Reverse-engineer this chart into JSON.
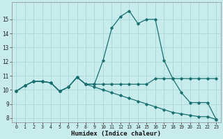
{
  "xlabel": "Humidex (Indice chaleur)",
  "background_color": "#c8ecec",
  "grid_color": "#a8d8d8",
  "line_color": "#1a7070",
  "xlim_min": -0.5,
  "xlim_max": 23.5,
  "ylim_min": 7.7,
  "ylim_max": 16.2,
  "yticks": [
    8,
    9,
    10,
    11,
    12,
    13,
    14,
    15
  ],
  "xticks": [
    0,
    1,
    2,
    3,
    4,
    5,
    6,
    7,
    8,
    9,
    10,
    11,
    12,
    13,
    14,
    15,
    16,
    17,
    18,
    19,
    20,
    21,
    22,
    23
  ],
  "series": [
    {
      "x": [
        0,
        1,
        2,
        3,
        4,
        5,
        6,
        7,
        8,
        9,
        10,
        11,
        12,
        13,
        14,
        15,
        16,
        17,
        18,
        19,
        20,
        21,
        22,
        23
      ],
      "y": [
        9.9,
        10.3,
        10.6,
        10.6,
        10.5,
        9.9,
        10.2,
        10.9,
        10.4,
        10.4,
        12.1,
        14.4,
        15.2,
        15.6,
        14.7,
        15.0,
        15.0,
        12.1,
        10.8,
        9.8,
        9.1,
        9.1,
        9.1,
        7.9
      ]
    },
    {
      "x": [
        0,
        1,
        2,
        3,
        4,
        5,
        6,
        7,
        8,
        9,
        10,
        11,
        12,
        13,
        14,
        15,
        16,
        17,
        18,
        19,
        20,
        21,
        22,
        23
      ],
      "y": [
        9.9,
        10.3,
        10.6,
        10.6,
        10.5,
        9.9,
        10.2,
        10.9,
        10.4,
        10.4,
        10.4,
        10.4,
        10.4,
        10.4,
        10.4,
        10.4,
        10.8,
        10.8,
        10.8,
        10.8,
        10.8,
        10.8,
        10.8,
        10.8
      ]
    },
    {
      "x": [
        0,
        1,
        2,
        3,
        4,
        5,
        6,
        7,
        8,
        9,
        10,
        11,
        12,
        13,
        14,
        15,
        16,
        17,
        18,
        19,
        20,
        21,
        22,
        23
      ],
      "y": [
        9.9,
        10.3,
        10.6,
        10.6,
        10.5,
        9.9,
        10.2,
        10.9,
        10.4,
        10.2,
        10.0,
        9.8,
        9.6,
        9.4,
        9.2,
        9.0,
        8.8,
        8.6,
        8.4,
        8.3,
        8.2,
        8.1,
        8.1,
        7.9
      ]
    }
  ]
}
